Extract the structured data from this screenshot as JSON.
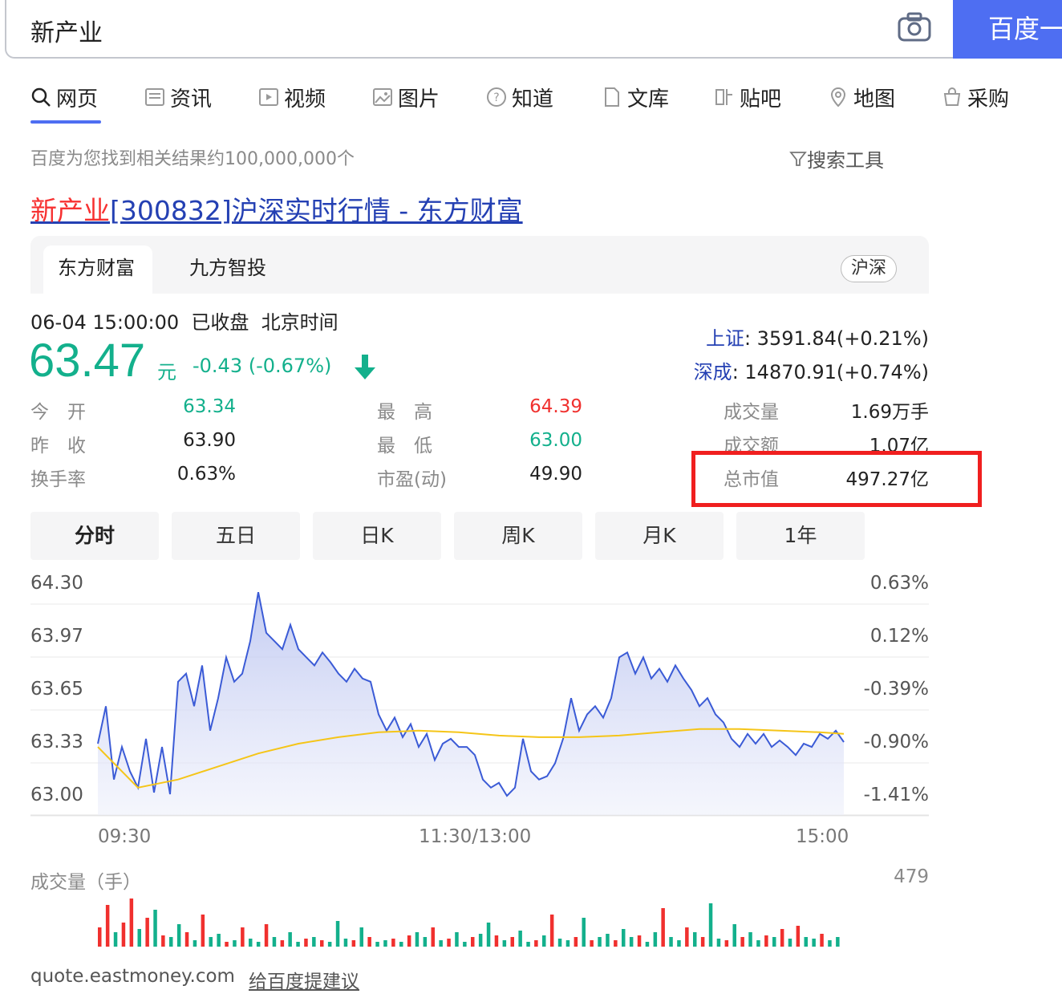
{
  "search": {
    "query": "新产业",
    "button_label": "百度一"
  },
  "nav": {
    "items": [
      {
        "label": "网页",
        "icon": "search-icon"
      },
      {
        "label": "资讯",
        "icon": "news-icon"
      },
      {
        "label": "视频",
        "icon": "video-icon"
      },
      {
        "label": "图片",
        "icon": "image-icon"
      },
      {
        "label": "知道",
        "icon": "question-icon"
      },
      {
        "label": "文库",
        "icon": "document-icon"
      },
      {
        "label": "贴吧",
        "icon": "tieba-icon"
      },
      {
        "label": "地图",
        "icon": "map-icon"
      },
      {
        "label": "采购",
        "icon": "shop-icon"
      }
    ]
  },
  "result_count": "百度为您找到相关结果约100,000,000个",
  "search_tools": "搜索工具",
  "result": {
    "title_highlight": "新产业",
    "title_rest": "[300832]沪深实时行情 - 东方财富"
  },
  "card": {
    "tabs": [
      "东方财富",
      "九方智投"
    ],
    "market_badge": "沪深"
  },
  "quote": {
    "datetime": "06-04 15:00:00",
    "status": "已收盘",
    "timezone": "北京时间",
    "price": "63.47",
    "unit": "元",
    "change": "-0.43 (-0.67%)",
    "trend": "down",
    "indices": [
      {
        "name": "上证",
        "value": ": 3591.84(+0.21%)"
      },
      {
        "name": "深成",
        "value": ": 14870.91(+0.74%)"
      }
    ],
    "stats": {
      "open_label": "今　开",
      "open": "63.34",
      "prev_close_label": "昨　收",
      "prev_close": "63.90",
      "turnover_label": "换手率",
      "turnover": "0.63%",
      "high_label": "最　高",
      "high": "64.39",
      "low_label": "最　低",
      "low": "63.00",
      "pe_label": "市盈(动)",
      "pe": "49.90",
      "volume_label": "成交量",
      "volume": "1.69万手",
      "amount_label": "成交额",
      "amount": "1.07亿",
      "mktcap_label": "总市值",
      "mktcap": "497.27亿"
    }
  },
  "periods": [
    "分时",
    "五日",
    "日K",
    "周K",
    "月K",
    "1年"
  ],
  "chart_data": {
    "type": "line",
    "y_left_ticks": [
      "64.30",
      "63.97",
      "63.65",
      "63.33",
      "63.00"
    ],
    "y_right_ticks": [
      "0.63%",
      "0.12%",
      "-0.39%",
      "-0.90%",
      "-1.41%"
    ],
    "x_ticks": [
      "09:30",
      "11:30/13:00",
      "15:00"
    ],
    "ylim": [
      63.0,
      64.3
    ],
    "series": [
      {
        "name": "price",
        "color": "#3b5bd6",
        "points": [
          [
            0,
            63.32
          ],
          [
            1,
            63.55
          ],
          [
            2,
            63.1
          ],
          [
            3,
            63.3
          ],
          [
            4,
            63.15
          ],
          [
            5,
            63.05
          ],
          [
            6,
            63.35
          ],
          [
            7,
            63.02
          ],
          [
            8,
            63.3
          ],
          [
            9,
            63.01
          ],
          [
            10,
            63.7
          ],
          [
            11,
            63.75
          ],
          [
            12,
            63.55
          ],
          [
            13,
            63.8
          ],
          [
            14,
            63.4
          ],
          [
            15,
            63.6
          ],
          [
            16,
            63.85
          ],
          [
            17,
            63.7
          ],
          [
            18,
            63.75
          ],
          [
            19,
            63.95
          ],
          [
            20,
            64.25
          ],
          [
            21,
            64.0
          ],
          [
            22,
            63.95
          ],
          [
            23,
            63.9
          ],
          [
            24,
            64.05
          ],
          [
            25,
            63.9
          ],
          [
            26,
            63.85
          ],
          [
            27,
            63.8
          ],
          [
            28,
            63.88
          ],
          [
            29,
            63.82
          ],
          [
            30,
            63.75
          ],
          [
            31,
            63.7
          ],
          [
            32,
            63.78
          ],
          [
            33,
            63.72
          ],
          [
            34,
            63.7
          ],
          [
            35,
            63.5
          ],
          [
            36,
            63.4
          ],
          [
            37,
            63.48
          ],
          [
            38,
            63.36
          ],
          [
            39,
            63.44
          ],
          [
            40,
            63.3
          ],
          [
            41,
            63.38
          ],
          [
            42,
            63.22
          ],
          [
            43,
            63.32
          ],
          [
            44,
            63.35
          ],
          [
            45,
            63.3
          ],
          [
            46,
            63.3
          ],
          [
            47,
            63.25
          ],
          [
            48,
            63.1
          ],
          [
            49,
            63.05
          ],
          [
            50,
            63.08
          ],
          [
            51,
            63.0
          ],
          [
            52,
            63.05
          ],
          [
            53,
            63.35
          ],
          [
            54,
            63.15
          ],
          [
            55,
            63.1
          ],
          [
            56,
            63.12
          ],
          [
            57,
            63.2
          ],
          [
            58,
            63.35
          ],
          [
            59,
            63.6
          ],
          [
            60,
            63.4
          ],
          [
            61,
            63.5
          ],
          [
            62,
            63.55
          ],
          [
            63,
            63.48
          ],
          [
            64,
            63.6
          ],
          [
            65,
            63.85
          ],
          [
            66,
            63.88
          ],
          [
            67,
            63.75
          ],
          [
            68,
            63.85
          ],
          [
            69,
            63.72
          ],
          [
            70,
            63.78
          ],
          [
            71,
            63.7
          ],
          [
            72,
            63.8
          ],
          [
            73,
            63.72
          ],
          [
            74,
            63.65
          ],
          [
            75,
            63.55
          ],
          [
            76,
            63.6
          ],
          [
            77,
            63.5
          ],
          [
            78,
            63.45
          ],
          [
            79,
            63.35
          ],
          [
            80,
            63.3
          ],
          [
            81,
            63.38
          ],
          [
            82,
            63.32
          ],
          [
            83,
            63.38
          ],
          [
            84,
            63.3
          ],
          [
            85,
            63.34
          ],
          [
            86,
            63.3
          ],
          [
            87,
            63.25
          ],
          [
            88,
            63.32
          ],
          [
            89,
            63.3
          ],
          [
            90,
            63.38
          ],
          [
            91,
            63.35
          ],
          [
            92,
            63.4
          ],
          [
            93,
            63.33
          ]
        ]
      },
      {
        "name": "avg",
        "color": "#f5c518",
        "points": [
          [
            0,
            63.3
          ],
          [
            5,
            63.05
          ],
          [
            10,
            63.1
          ],
          [
            15,
            63.18
          ],
          [
            20,
            63.26
          ],
          [
            25,
            63.32
          ],
          [
            30,
            63.36
          ],
          [
            35,
            63.39
          ],
          [
            40,
            63.4
          ],
          [
            45,
            63.39
          ],
          [
            50,
            63.37
          ],
          [
            55,
            63.36
          ],
          [
            60,
            63.36
          ],
          [
            65,
            63.37
          ],
          [
            70,
            63.39
          ],
          [
            75,
            63.41
          ],
          [
            80,
            63.41
          ],
          [
            85,
            63.4
          ],
          [
            90,
            63.39
          ],
          [
            93,
            63.38
          ]
        ]
      }
    ],
    "volume": {
      "ylabel": "成交量（手）",
      "max_label": "479",
      "bars": [
        120,
        260,
        90,
        150,
        300,
        110,
        180,
        230,
        70,
        60,
        140,
        90,
        40,
        200,
        60,
        80,
        30,
        40,
        120,
        50,
        30,
        140,
        60,
        40,
        90,
        30,
        50,
        60,
        40,
        30,
        160,
        50,
        40,
        120,
        60,
        30,
        40,
        50,
        30,
        70,
        90,
        60,
        120,
        40,
        50,
        90,
        30,
        60,
        80,
        150,
        70,
        40,
        60,
        100,
        30,
        40,
        70,
        200,
        50,
        40,
        60,
        180,
        40,
        60,
        80,
        40,
        110,
        60,
        70,
        30,
        90,
        240,
        60,
        40,
        120,
        90,
        60,
        270,
        50,
        40,
        140,
        60,
        90,
        40,
        70,
        60,
        110,
        50,
        130,
        60,
        50,
        80,
        40,
        60
      ],
      "colors": [
        "r",
        "r",
        "g",
        "r",
        "r",
        "g",
        "r",
        "g",
        "r",
        "g",
        "g",
        "r",
        "g",
        "r",
        "g",
        "g",
        "r",
        "g",
        "r",
        "g",
        "g",
        "r",
        "g",
        "r",
        "g",
        "g",
        "r",
        "g",
        "r",
        "g",
        "g",
        "g",
        "r",
        "g",
        "r",
        "g",
        "g",
        "r",
        "g",
        "r",
        "g",
        "g",
        "r",
        "g",
        "r",
        "g",
        "g",
        "r",
        "g",
        "g",
        "r",
        "g",
        "r",
        "g",
        "g",
        "r",
        "g",
        "r",
        "g",
        "g",
        "r",
        "g",
        "r",
        "g",
        "g",
        "r",
        "g",
        "g",
        "r",
        "g",
        "g",
        "r",
        "g",
        "g",
        "r",
        "g",
        "r",
        "g",
        "g",
        "r",
        "g",
        "r",
        "g",
        "g",
        "r",
        "g",
        "r",
        "g",
        "r",
        "g",
        "g",
        "r",
        "g",
        "g"
      ]
    }
  },
  "footer": {
    "source": "quote.eastmoney.com",
    "feedback": "给百度提建议"
  },
  "colors": {
    "brand": "#4e6ef2",
    "up": "#f0302e",
    "down": "#13b08c",
    "link": "#2440b3"
  }
}
